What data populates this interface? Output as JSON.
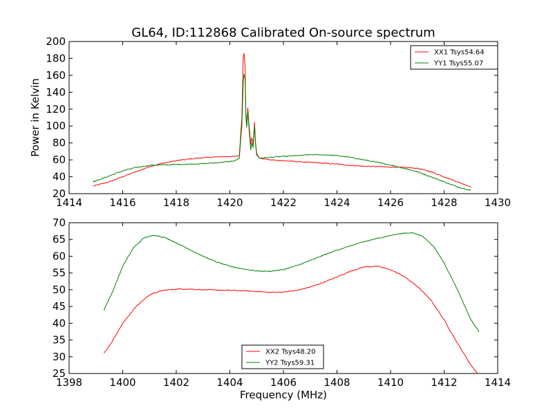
{
  "title": "GL64, ID:112868 Calibrated On-source spectrum",
  "chart_data": [
    {
      "type": "line",
      "panel": "top",
      "xlabel": "",
      "ylabel": "Power in Kelvin",
      "xlim": [
        1414,
        1430
      ],
      "ylim": [
        20,
        200
      ],
      "xticks": [
        1414,
        1416,
        1418,
        1420,
        1422,
        1424,
        1426,
        1428,
        1430
      ],
      "yticks": [
        20,
        40,
        60,
        80,
        100,
        120,
        140,
        160,
        180,
        200
      ],
      "grid": false,
      "legend": "top-right",
      "series": [
        {
          "name": "XX1 Tsys54.64",
          "color": "#ff0000",
          "points": [
            [
              1414.9,
              29
            ],
            [
              1415.5,
              34
            ],
            [
              1416.0,
              40
            ],
            [
              1416.5,
              46
            ],
            [
              1417.0,
              52
            ],
            [
              1417.5,
              56
            ],
            [
              1418.0,
              59
            ],
            [
              1418.5,
              61
            ],
            [
              1419.0,
              62.5
            ],
            [
              1419.5,
              63.5
            ],
            [
              1420.0,
              64
            ],
            [
              1420.2,
              64
            ],
            [
              1420.35,
              65
            ],
            [
              1420.45,
              110
            ],
            [
              1420.5,
              183
            ],
            [
              1420.53,
              186
            ],
            [
              1420.57,
              170
            ],
            [
              1420.6,
              115
            ],
            [
              1420.63,
              102
            ],
            [
              1420.67,
              122
            ],
            [
              1420.72,
              100
            ],
            [
              1420.78,
              78
            ],
            [
              1420.82,
              86
            ],
            [
              1420.87,
              78
            ],
            [
              1420.92,
              105
            ],
            [
              1420.96,
              80
            ],
            [
              1421.0,
              68
            ],
            [
              1421.1,
              62
            ],
            [
              1421.5,
              60
            ],
            [
              1422.0,
              59
            ],
            [
              1422.5,
              58
            ],
            [
              1423.0,
              57
            ],
            [
              1423.5,
              56
            ],
            [
              1424.0,
              55
            ],
            [
              1424.5,
              53.5
            ],
            [
              1425.0,
              52.5
            ],
            [
              1425.5,
              52
            ],
            [
              1426.0,
              51.5
            ],
            [
              1426.5,
              51
            ],
            [
              1427.0,
              50
            ],
            [
              1427.5,
              46
            ],
            [
              1428.0,
              40
            ],
            [
              1428.5,
              34
            ],
            [
              1429.0,
              28
            ]
          ]
        },
        {
          "name": "YY1 Tsys55.07",
          "color": "#008000",
          "points": [
            [
              1414.9,
              34
            ],
            [
              1415.5,
              41
            ],
            [
              1416.0,
              47
            ],
            [
              1416.5,
              51
            ],
            [
              1417.0,
              53.5
            ],
            [
              1417.5,
              54
            ],
            [
              1418.0,
              54.5
            ],
            [
              1418.5,
              55
            ],
            [
              1419.0,
              55.5
            ],
            [
              1419.5,
              56.5
            ],
            [
              1420.0,
              58
            ],
            [
              1420.2,
              59
            ],
            [
              1420.35,
              62
            ],
            [
              1420.45,
              100
            ],
            [
              1420.5,
              152
            ],
            [
              1420.53,
              162
            ],
            [
              1420.57,
              155
            ],
            [
              1420.6,
              110
            ],
            [
              1420.63,
              98
            ],
            [
              1420.67,
              118
            ],
            [
              1420.72,
              95
            ],
            [
              1420.78,
              72
            ],
            [
              1420.82,
              80
            ],
            [
              1420.87,
              74
            ],
            [
              1420.92,
              100
            ],
            [
              1420.96,
              78
            ],
            [
              1421.0,
              66
            ],
            [
              1421.1,
              62
            ],
            [
              1421.5,
              63
            ],
            [
              1422.0,
              64
            ],
            [
              1422.5,
              65
            ],
            [
              1423.0,
              66
            ],
            [
              1423.5,
              66
            ],
            [
              1424.0,
              65
            ],
            [
              1424.5,
              63
            ],
            [
              1425.0,
              60
            ],
            [
              1425.5,
              57
            ],
            [
              1426.0,
              54
            ],
            [
              1426.5,
              50
            ],
            [
              1427.0,
              46
            ],
            [
              1427.5,
              40
            ],
            [
              1428.0,
              34
            ],
            [
              1428.5,
              28
            ],
            [
              1429.0,
              24
            ]
          ]
        }
      ]
    },
    {
      "type": "line",
      "panel": "bottom",
      "xlabel": "Frequency (MHz)",
      "ylabel": "",
      "xlim": [
        1398,
        1414
      ],
      "ylim": [
        25,
        70
      ],
      "xticks": [
        1398,
        1400,
        1402,
        1404,
        1406,
        1408,
        1410,
        1412,
        1414
      ],
      "yticks": [
        25,
        30,
        35,
        40,
        45,
        50,
        55,
        60,
        65,
        70
      ],
      "grid": false,
      "legend": "bottom-center",
      "series": [
        {
          "name": "XX2 Tsys48.20",
          "color": "#ff0000",
          "points": [
            [
              1399.3,
              31
            ],
            [
              1399.6,
              34.5
            ],
            [
              1400.0,
              40
            ],
            [
              1400.5,
              45
            ],
            [
              1401.0,
              48.5
            ],
            [
              1401.5,
              49.8
            ],
            [
              1402.0,
              50.2
            ],
            [
              1402.5,
              50.2
            ],
            [
              1403.0,
              50
            ],
            [
              1403.5,
              49.9
            ],
            [
              1404.0,
              49.8
            ],
            [
              1404.5,
              49.7
            ],
            [
              1405.0,
              49.5
            ],
            [
              1405.5,
              49.2
            ],
            [
              1406.0,
              49.3
            ],
            [
              1406.5,
              49.8
            ],
            [
              1407.0,
              50.8
            ],
            [
              1407.5,
              52.2
            ],
            [
              1408.0,
              53.8
            ],
            [
              1408.5,
              55.5
            ],
            [
              1409.0,
              56.8
            ],
            [
              1409.5,
              57
            ],
            [
              1410.0,
              56
            ],
            [
              1410.5,
              54
            ],
            [
              1411.0,
              51
            ],
            [
              1411.5,
              47
            ],
            [
              1412.0,
              41
            ],
            [
              1412.5,
              34
            ],
            [
              1413.0,
              27.5
            ],
            [
              1413.3,
              24.5
            ]
          ]
        },
        {
          "name": "YY2 Tsys59.31",
          "color": "#008000",
          "points": [
            [
              1399.3,
              44
            ],
            [
              1399.6,
              49
            ],
            [
              1400.0,
              57
            ],
            [
              1400.4,
              62.5
            ],
            [
              1400.8,
              65.5
            ],
            [
              1401.2,
              66.3
            ],
            [
              1401.6,
              65.5
            ],
            [
              1402.0,
              64
            ],
            [
              1402.5,
              62
            ],
            [
              1403.0,
              60
            ],
            [
              1403.5,
              58.3
            ],
            [
              1404.0,
              57
            ],
            [
              1404.5,
              56.2
            ],
            [
              1405.0,
              55.6
            ],
            [
              1405.5,
              55.5
            ],
            [
              1406.0,
              56
            ],
            [
              1406.5,
              57.2
            ],
            [
              1407.0,
              58.7
            ],
            [
              1407.5,
              60.3
            ],
            [
              1408.0,
              61.8
            ],
            [
              1408.5,
              63.1
            ],
            [
              1409.0,
              64.3
            ],
            [
              1409.5,
              65.3
            ],
            [
              1410.0,
              66.2
            ],
            [
              1410.5,
              66.9
            ],
            [
              1410.8,
              67
            ],
            [
              1411.2,
              66
            ],
            [
              1411.6,
              63
            ],
            [
              1412.0,
              58
            ],
            [
              1412.5,
              50
            ],
            [
              1413.0,
              41
            ],
            [
              1413.3,
              37.5
            ]
          ]
        }
      ]
    }
  ]
}
